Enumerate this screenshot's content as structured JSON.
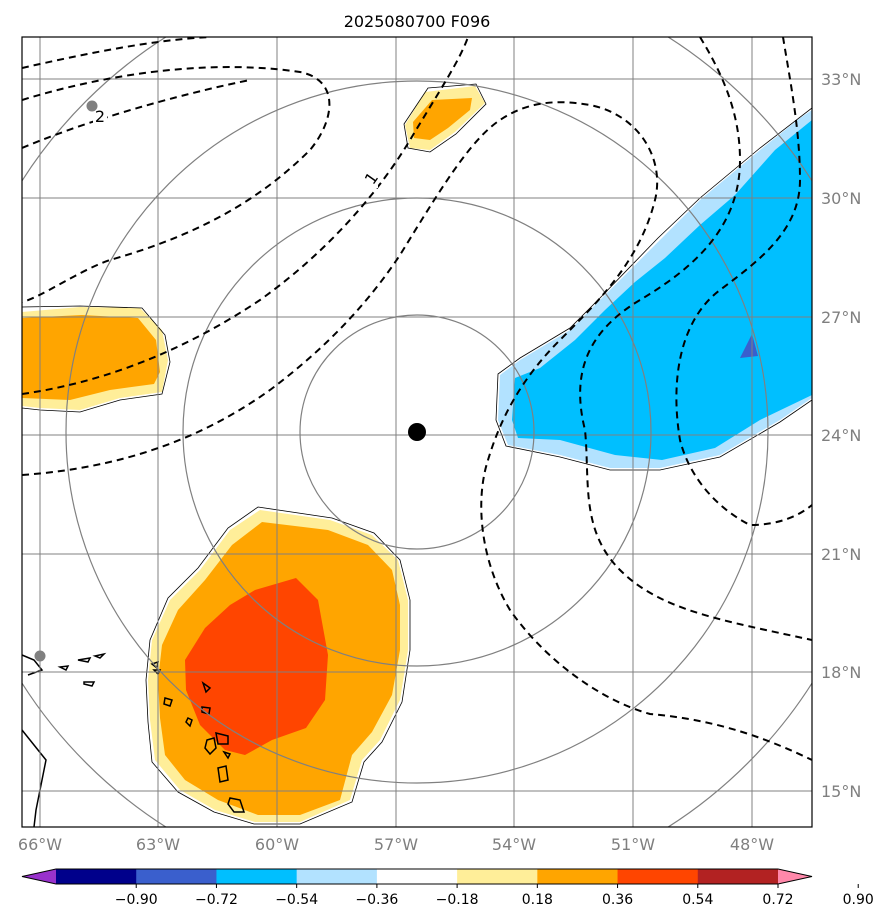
{
  "map": {
    "title": "2025080700 F096",
    "lon_ticks": [
      "66°W",
      "63°W",
      "60°W",
      "57°W",
      "54°W",
      "51°W",
      "48°W"
    ],
    "lat_ticks": [
      "33°N",
      "30°N",
      "27°N",
      "24°N",
      "21°N",
      "18°N",
      "15°N"
    ],
    "contour_labels": [
      "2",
      "1"
    ],
    "center_marker": "black-dot",
    "range_rings": 4
  },
  "colorbar": {
    "ticks": [
      "−0.90",
      "−0.72",
      "−0.54",
      "−0.36",
      "−0.18",
      "0.18",
      "0.36",
      "0.54",
      "0.72",
      "0.90"
    ],
    "colors": [
      "#9932cc",
      "#00008b",
      "#3a5fcd",
      "#00bfff",
      "#b2e2ff",
      "#ffffff",
      "#ffee99",
      "#ffa500",
      "#ff4500",
      "#b22222",
      "#ff88aa"
    ]
  },
  "fill_colors": {
    "light_yellow": "#ffee99",
    "orange": "#ffa500",
    "red_orange": "#ff4500",
    "deep_sky_blue": "#00bfff",
    "light_blue": "#b2e2ff",
    "royal_blue": "#3a5fcd"
  }
}
